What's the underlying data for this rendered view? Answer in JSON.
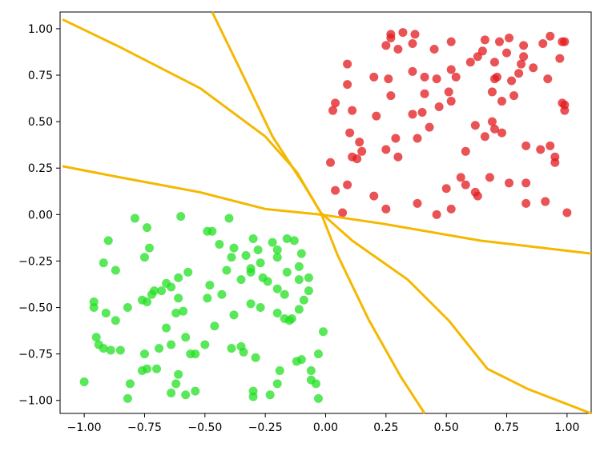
{
  "chart_data": {
    "type": "scatter",
    "xlim": [
      -1.1,
      1.1
    ],
    "ylim": [
      -1.07,
      1.09
    ],
    "xticks": [
      {
        "value": -1,
        "label": "−1.00"
      },
      {
        "value": -0.75,
        "label": "−0.75"
      },
      {
        "value": -0.5,
        "label": "−0.50"
      },
      {
        "value": -0.25,
        "label": "−0.25"
      },
      {
        "value": 0,
        "label": "0.00"
      },
      {
        "value": 0.25,
        "label": "0.25"
      },
      {
        "value": 0.5,
        "label": "0.50"
      },
      {
        "value": 0.75,
        "label": "0.75"
      },
      {
        "value": 1,
        "label": "1.00"
      }
    ],
    "yticks": [
      {
        "value": 1,
        "label": "1.00"
      },
      {
        "value": 0.75,
        "label": "0.75"
      },
      {
        "value": 0.5,
        "label": "0.50"
      },
      {
        "value": 0.25,
        "label": "0.25"
      },
      {
        "value": 0,
        "label": "0.00"
      },
      {
        "value": -0.25,
        "label": "−0.25"
      },
      {
        "value": -0.5,
        "label": "−0.50"
      },
      {
        "value": -0.75,
        "label": "−0.75"
      },
      {
        "value": -1,
        "label": "−1.00"
      }
    ],
    "series": [
      {
        "mode": "markers",
        "color": "#e31a1c",
        "x": [
          0.27,
          0.32,
          0.27,
          0.37,
          0.25,
          0.3,
          0.45,
          0.36,
          0.09,
          0.09,
          0.04,
          0.03,
          0.11,
          0.2,
          0.26,
          0.21,
          0.27,
          0.36,
          0.41,
          0.46,
          0.52,
          0.54,
          0.51,
          0.41,
          0.47,
          0.52,
          0.4,
          0.36,
          0.43,
          0.38,
          0.29,
          0.25,
          0.3,
          0.1,
          0.14,
          0.11,
          0.13,
          0.15,
          0.02,
          0.04,
          0.09,
          0.07,
          0.2,
          0.25,
          0.38,
          0.46,
          0.5,
          0.52,
          0.56,
          0.58,
          0.62,
          0.63,
          0.58,
          0.62,
          0.66,
          0.69,
          0.7,
          0.73,
          0.68,
          0.76,
          0.83,
          0.83,
          0.91,
          0.83,
          0.89,
          0.93,
          0.95,
          0.95,
          1.0,
          0.69,
          0.7,
          0.73,
          0.78,
          0.77,
          0.8,
          0.81,
          0.82,
          0.9,
          0.93,
          0.82,
          0.86,
          0.92,
          0.97,
          0.99,
          0.98,
          0.98,
          0.99,
          0.99,
          0.6,
          0.63,
          0.65,
          0.7,
          0.72,
          0.76,
          0.75,
          0.66,
          0.52,
          0.71
        ],
        "values": [
          0.97,
          0.98,
          0.95,
          0.97,
          0.91,
          0.89,
          0.89,
          0.92,
          0.81,
          0.7,
          0.6,
          0.56,
          0.56,
          0.74,
          0.73,
          0.53,
          0.64,
          0.77,
          0.74,
          0.73,
          0.78,
          0.74,
          0.66,
          0.65,
          0.58,
          0.61,
          0.55,
          0.54,
          0.47,
          0.41,
          0.41,
          0.35,
          0.31,
          0.44,
          0.39,
          0.31,
          0.3,
          0.34,
          0.28,
          0.13,
          0.16,
          0.01,
          0.1,
          0.03,
          0.06,
          0.0,
          0.14,
          0.03,
          0.2,
          0.16,
          0.12,
          0.1,
          0.34,
          0.48,
          0.42,
          0.5,
          0.46,
          0.44,
          0.2,
          0.17,
          0.17,
          0.06,
          0.07,
          0.37,
          0.35,
          0.37,
          0.31,
          0.28,
          0.01,
          0.66,
          0.73,
          0.61,
          0.64,
          0.72,
          0.76,
          0.81,
          0.91,
          0.92,
          0.96,
          0.85,
          0.79,
          0.73,
          0.84,
          0.93,
          0.93,
          0.6,
          0.59,
          0.56,
          0.82,
          0.85,
          0.88,
          0.82,
          0.93,
          0.95,
          0.87,
          0.94,
          0.93,
          0.74
        ]
      },
      {
        "mode": "markers",
        "color": "#22e022",
        "x": [
          -1.0,
          -0.79,
          -0.6,
          -0.74,
          -0.9,
          -0.92,
          -0.87,
          -0.75,
          -0.73,
          -0.96,
          -0.96,
          -0.91,
          -0.87,
          -0.82,
          -0.76,
          -0.74,
          -0.72,
          -0.71,
          -0.68,
          -0.66,
          -0.64,
          -0.61,
          -0.57,
          -0.61,
          -0.59,
          -0.49,
          -0.62,
          -0.66,
          -0.69,
          -0.75,
          -0.76,
          -0.81,
          -0.82,
          -0.92,
          -0.89,
          -0.85,
          -0.95,
          -0.94,
          -0.74,
          -0.7,
          -0.61,
          -0.62,
          -0.64,
          -0.54,
          -0.58,
          -0.56,
          -0.54,
          -0.5,
          -0.46,
          -0.58,
          -0.64,
          -0.49,
          -0.47,
          -0.4,
          -0.44,
          -0.38,
          -0.3,
          -0.28,
          -0.22,
          -0.16,
          -0.13,
          -0.2,
          -0.2,
          -0.27,
          -0.33,
          -0.39,
          -0.41,
          -0.31,
          -0.31,
          -0.35,
          -0.26,
          -0.24,
          -0.31,
          -0.27,
          -0.2,
          -0.16,
          -0.1,
          -0.11,
          -0.11,
          -0.07,
          -0.07,
          -0.17,
          -0.2,
          -0.17,
          -0.15,
          -0.14,
          -0.09,
          -0.11,
          -0.38,
          -0.43,
          -0.48,
          -0.39,
          -0.35,
          -0.34,
          -0.29,
          -0.19,
          -0.12,
          -0.1,
          -0.06,
          -0.06,
          -0.03,
          -0.01,
          -0.3,
          -0.3,
          -0.23,
          -0.2,
          -0.04,
          -0.03
        ],
        "values": [
          -0.9,
          -0.02,
          -0.01,
          -0.07,
          -0.14,
          -0.26,
          -0.3,
          -0.23,
          -0.18,
          -0.47,
          -0.5,
          -0.53,
          -0.57,
          -0.5,
          -0.46,
          -0.47,
          -0.43,
          -0.41,
          -0.41,
          -0.37,
          -0.39,
          -0.34,
          -0.31,
          -0.45,
          -0.52,
          -0.45,
          -0.53,
          -0.61,
          -0.72,
          -0.75,
          -0.84,
          -0.91,
          -0.99,
          -0.72,
          -0.73,
          -0.73,
          -0.66,
          -0.7,
          -0.83,
          -0.83,
          -0.86,
          -0.91,
          -0.96,
          -0.95,
          -0.97,
          -0.75,
          -0.75,
          -0.7,
          -0.6,
          -0.66,
          -0.7,
          -0.09,
          -0.09,
          -0.02,
          -0.16,
          -0.18,
          -0.13,
          -0.19,
          -0.15,
          -0.13,
          -0.14,
          -0.23,
          -0.19,
          -0.26,
          -0.22,
          -0.23,
          -0.3,
          -0.29,
          -0.31,
          -0.35,
          -0.34,
          -0.36,
          -0.48,
          -0.5,
          -0.4,
          -0.31,
          -0.21,
          -0.28,
          -0.35,
          -0.34,
          -0.41,
          -0.43,
          -0.53,
          -0.56,
          -0.57,
          -0.56,
          -0.46,
          -0.51,
          -0.54,
          -0.43,
          -0.38,
          -0.72,
          -0.71,
          -0.74,
          -0.77,
          -0.84,
          -0.79,
          -0.78,
          -0.84,
          -0.89,
          -0.75,
          -0.63,
          -0.95,
          -0.98,
          -0.97,
          -0.91,
          -0.91,
          -0.99
        ]
      },
      {
        "mode": "line",
        "color": "#f5b800",
        "x": [
          -1.09,
          -0.85,
          -0.52,
          -0.25,
          -0.12,
          -0.02,
          0.11,
          0.34,
          0.51,
          0.67,
          0.84,
          1.1
        ],
        "values": [
          1.05,
          0.9,
          0.68,
          0.42,
          0.23,
          0.01,
          -0.14,
          -0.35,
          -0.57,
          -0.83,
          -0.94,
          -1.07
        ]
      },
      {
        "mode": "line",
        "color": "#f5b800",
        "x": [
          -0.47,
          -0.35,
          -0.22,
          -0.09,
          -0.02,
          0.05,
          0.18,
          0.31,
          0.41
        ],
        "values": [
          1.09,
          0.77,
          0.42,
          0.16,
          0.01,
          -0.22,
          -0.57,
          -0.87,
          -1.07
        ]
      },
      {
        "mode": "line",
        "color": "#f5b800",
        "x": [
          -1.09,
          -0.85,
          -0.52,
          -0.25,
          -0.02,
          0.24,
          0.64,
          1.1
        ],
        "values": [
          0.26,
          0.2,
          0.12,
          0.03,
          0.0,
          -0.05,
          -0.14,
          -0.21
        ]
      }
    ]
  }
}
